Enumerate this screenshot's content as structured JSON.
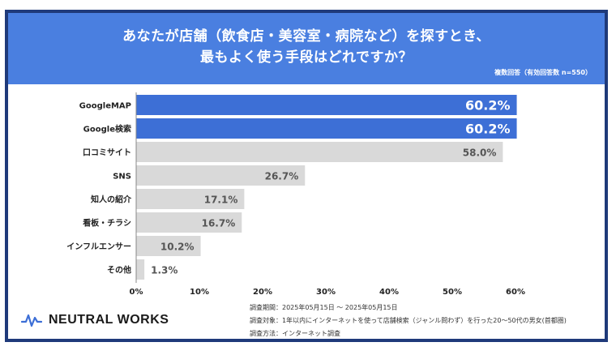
{
  "header": {
    "title_line1": "あなたが店舗（飲食店・美容室・病院など）を探すとき、",
    "title_line2": "最もよく使う手段はどれですか？",
    "note": "複数回答（有効回答数 n=550）"
  },
  "chart_data": {
    "type": "bar",
    "orientation": "horizontal",
    "categories": [
      "GoogleMAP",
      "Google検索",
      "口コミサイト",
      "SNS",
      "知人の紹介",
      "看板・チラシ",
      "インフルエンサー",
      "その他"
    ],
    "values": [
      60.2,
      60.2,
      58.0,
      26.7,
      17.1,
      16.7,
      10.2,
      1.3
    ],
    "value_labels": [
      "60.2%",
      "60.2%",
      "58.0%",
      "26.7%",
      "17.1%",
      "16.7%",
      "10.2%",
      "1.3%"
    ],
    "highlight": [
      true,
      true,
      false,
      false,
      false,
      false,
      false,
      false
    ],
    "xlim": [
      0,
      60
    ],
    "xticks": [
      0,
      10,
      20,
      30,
      40,
      50,
      60
    ],
    "xtick_labels": [
      "0%",
      "10%",
      "20%",
      "30%",
      "40%",
      "50%",
      "60%"
    ],
    "colors": {
      "highlight": "#3d6fd6",
      "normal": "#d9d9d9",
      "label_highlight": "#ffffff",
      "label_normal": "#555555"
    }
  },
  "footer": {
    "logo_text": "NEUTRAL WORKS",
    "logo_icon": "pulse-wave-icon",
    "period": "調査期間：2025年05月15日 〜 2025年05月15日",
    "target": "調査対象：1年以内にインターネットを使って店舗検索（ジャンル問わず）を行った20〜50代の男女(首都圏)",
    "method": "調査方法：インターネット調査"
  }
}
